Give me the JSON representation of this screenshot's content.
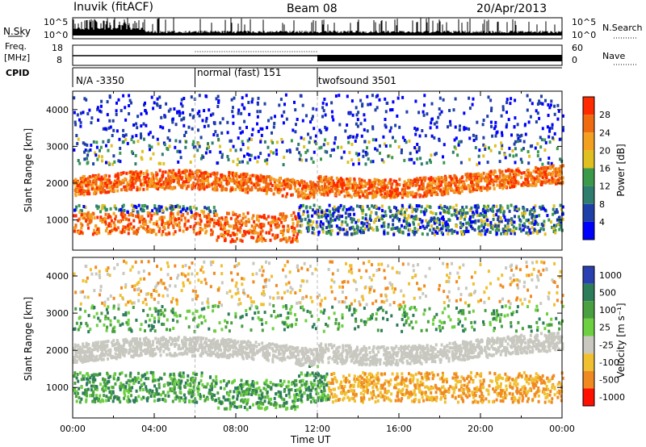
{
  "header": {
    "station": "Inuvik (fitACF)",
    "beam": "Beam 08",
    "date": "20/Apr/2013"
  },
  "left_labels": {
    "nsky": "N.Sky",
    "freq_line1": "Freq.",
    "freq_line2": "[MHz]",
    "cpid": "CPID"
  },
  "right_labels": {
    "nsearch": "N.Search",
    "nave": "Nave"
  },
  "noise_axis": {
    "left": [
      "10^5",
      "10^0"
    ],
    "right": [
      "10^5",
      "10^0"
    ]
  },
  "freq_axis": {
    "left": [
      "18",
      "8"
    ],
    "right": [
      "60",
      "0"
    ]
  },
  "cpid_segments": [
    {
      "label": "N/A -3350",
      "start": "00:00",
      "end": "06:00"
    },
    {
      "label": "normal (fast) 151",
      "start": "06:00",
      "end": "12:00"
    },
    {
      "label": "twofsound 3501",
      "start": "12:00",
      "end": "00:00"
    }
  ],
  "colors": {
    "power_scale": [
      "#0000ff",
      "#1f3fa8",
      "#2e7d6e",
      "#3a9a4a",
      "#e0c020",
      "#f3a020",
      "#f06a10",
      "#ff2a00"
    ],
    "velocity_scale": [
      "#2a3fb0",
      "#2e7d5a",
      "#4aa040",
      "#6cd040",
      "#c8c8c0",
      "#f0c030",
      "#f08a20",
      "#ff1000"
    ]
  },
  "chart_data": [
    {
      "type": "heatmap",
      "title": "Power",
      "ylabel": "Slant Range [km]",
      "ylim": [
        180,
        4500
      ],
      "yticks": [
        1000,
        2000,
        3000,
        4000
      ],
      "colorbar_label": "Power [dB]",
      "colorbar_ticks": [
        "4",
        "8",
        "12",
        "16",
        "20",
        "24",
        "28"
      ],
      "colorbar_range": [
        0,
        30
      ]
    },
    {
      "type": "heatmap",
      "title": "Velocity",
      "ylabel": "Slant Range [km]",
      "xlabel": "Time UT",
      "xticks": [
        "00:00",
        "04:00",
        "08:00",
        "12:00",
        "16:00",
        "20:00",
        "00:00"
      ],
      "ylim": [
        180,
        4500
      ],
      "yticks": [
        1000,
        2000,
        3000,
        4000
      ],
      "colorbar_label": "Velocity [m s⁻¹]",
      "colorbar_ticks": [
        "1000",
        "500",
        "100",
        "25",
        "-25",
        "-100",
        "-500",
        "-1000"
      ]
    }
  ]
}
